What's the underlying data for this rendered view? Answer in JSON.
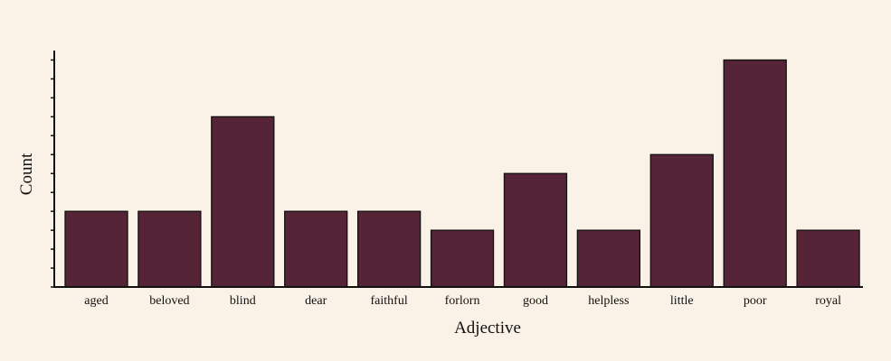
{
  "chart_data": {
    "type": "bar",
    "title": "",
    "xlabel": "Adjective",
    "ylabel": "Count",
    "categories": [
      "aged",
      "beloved",
      "blind",
      "dear",
      "faithful",
      "forlorn",
      "good",
      "helpless",
      "little",
      "poor",
      "royal"
    ],
    "values": [
      4,
      4,
      9,
      4,
      4,
      3,
      6,
      3,
      7,
      12,
      3
    ],
    "ylim": [
      0,
      12.5
    ],
    "y_tick_step": 1,
    "y_tick_labels_shown": false,
    "grid": false,
    "legend": "none",
    "colors": {
      "bar_fill": "#552436",
      "bar_stroke": "#111111",
      "axis": "#111111",
      "background": "#faf2e6"
    }
  }
}
